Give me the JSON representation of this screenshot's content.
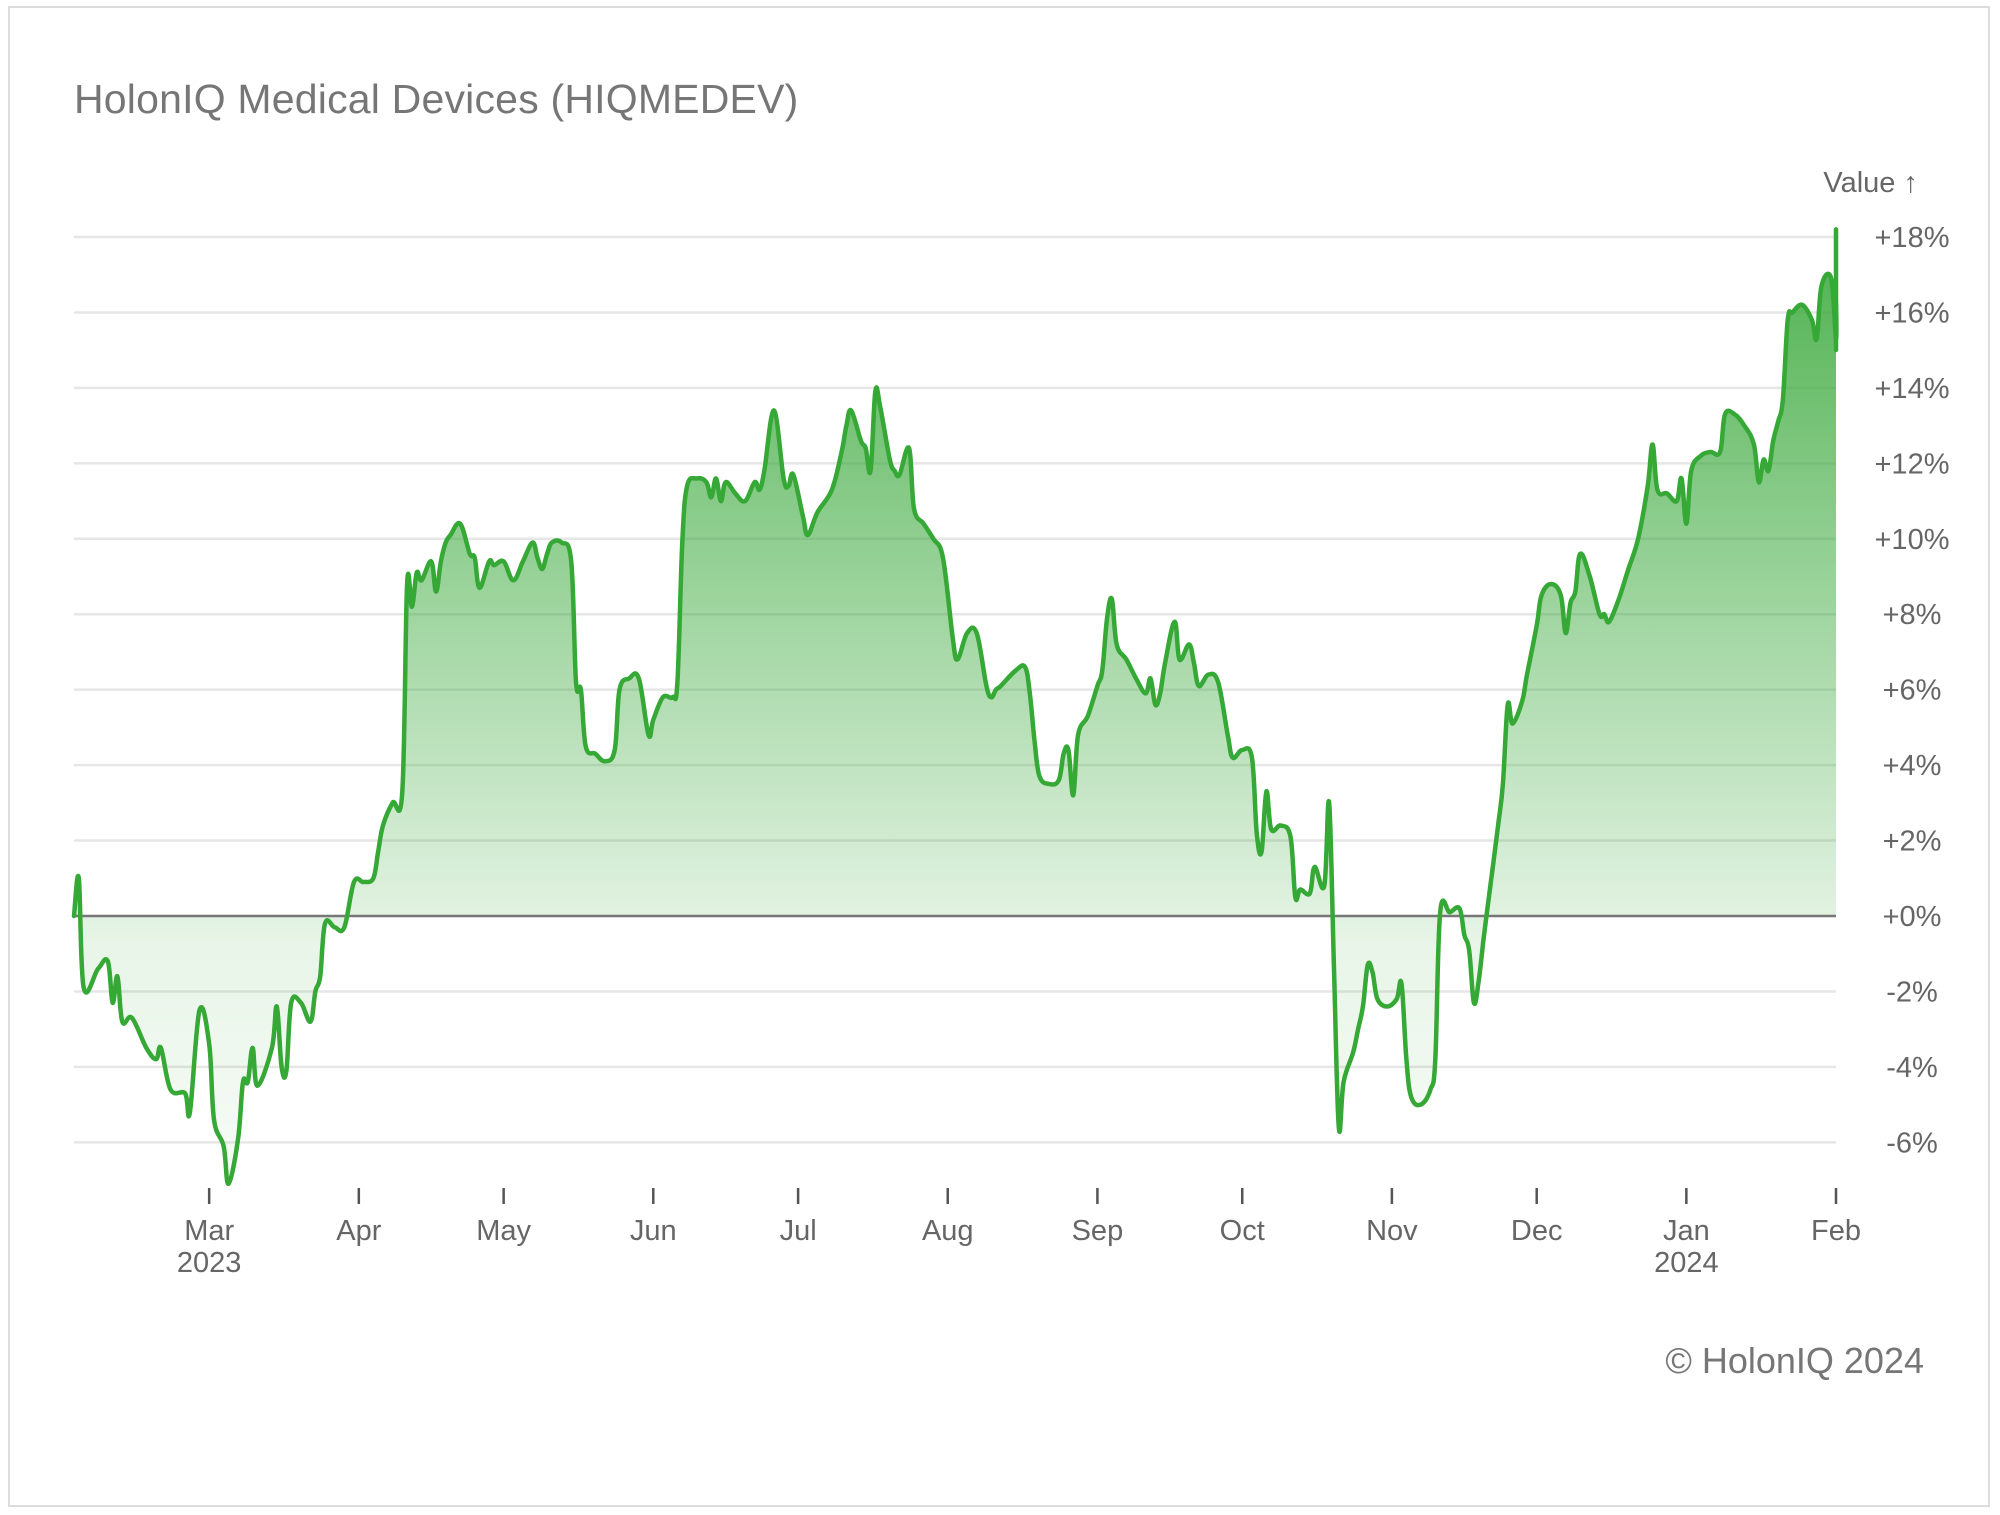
{
  "title": "HolonIQ Medical Devices (HIQMEDEV)",
  "copyright": "© HolonIQ 2024",
  "colors": {
    "line": "#35a836",
    "fill_top": "#3daa3e",
    "zero_line": "#777777",
    "grid": "#e6e6e6",
    "text": "#666666"
  },
  "chart_data": {
    "type": "area",
    "ylabel": "Value ↑",
    "y_unit": "%",
    "ylim": [
      -7.2,
      18.6
    ],
    "y_ticks": [
      {
        "value": 18,
        "label": "+18%"
      },
      {
        "value": 16,
        "label": "+16%"
      },
      {
        "value": 14,
        "label": "+14%"
      },
      {
        "value": 12,
        "label": "+12%"
      },
      {
        "value": 10,
        "label": "+10%"
      },
      {
        "value": 8,
        "label": "+8%"
      },
      {
        "value": 6,
        "label": "+6%"
      },
      {
        "value": 4,
        "label": "+4%"
      },
      {
        "value": 2,
        "label": "+2%"
      },
      {
        "value": 0,
        "label": "+0%"
      },
      {
        "value": -2,
        "label": "-2%"
      },
      {
        "value": -4,
        "label": "-4%"
      },
      {
        "value": -6,
        "label": "-6%"
      }
    ],
    "x_domain": [
      "2023-02-01",
      "2024-02-01"
    ],
    "x_ticks": [
      {
        "date": "2023-03-01",
        "label": "Mar",
        "sublabel": "2023"
      },
      {
        "date": "2023-04-01",
        "label": "Apr",
        "sublabel": ""
      },
      {
        "date": "2023-05-01",
        "label": "May",
        "sublabel": ""
      },
      {
        "date": "2023-06-01",
        "label": "Jun",
        "sublabel": ""
      },
      {
        "date": "2023-07-01",
        "label": "Jul",
        "sublabel": ""
      },
      {
        "date": "2023-08-01",
        "label": "Aug",
        "sublabel": ""
      },
      {
        "date": "2023-09-01",
        "label": "Sep",
        "sublabel": ""
      },
      {
        "date": "2023-10-01",
        "label": "Oct",
        "sublabel": ""
      },
      {
        "date": "2023-11-01",
        "label": "Nov",
        "sublabel": ""
      },
      {
        "date": "2023-12-01",
        "label": "Dec",
        "sublabel": ""
      },
      {
        "date": "2024-01-01",
        "label": "Jan",
        "sublabel": "2024"
      },
      {
        "date": "2024-02-01",
        "label": "Feb",
        "sublabel": ""
      }
    ],
    "grid": true,
    "series": [
      {
        "points": [
          [
            "2023-02-01",
            0.0
          ],
          [
            "2023-02-02",
            1.0
          ],
          [
            "2023-02-03",
            -1.9
          ],
          [
            "2023-02-06",
            -1.4
          ],
          [
            "2023-02-08",
            -1.2
          ],
          [
            "2023-02-09",
            -2.3
          ],
          [
            "2023-02-10",
            -1.6
          ],
          [
            "2023-02-11",
            -2.8
          ],
          [
            "2023-02-13",
            -2.7
          ],
          [
            "2023-02-16",
            -3.5
          ],
          [
            "2023-02-18",
            -3.8
          ],
          [
            "2023-02-19",
            -3.5
          ],
          [
            "2023-02-21",
            -4.6
          ],
          [
            "2023-02-24",
            -4.7
          ],
          [
            "2023-02-25",
            -5.2
          ],
          [
            "2023-02-27",
            -2.5
          ],
          [
            "2023-03-01",
            -3.4
          ],
          [
            "2023-03-02",
            -5.4
          ],
          [
            "2023-03-04",
            -6.1
          ],
          [
            "2023-03-05",
            -7.1
          ],
          [
            "2023-03-07",
            -5.9
          ],
          [
            "2023-03-08",
            -4.4
          ],
          [
            "2023-03-09",
            -4.4
          ],
          [
            "2023-03-10",
            -3.5
          ],
          [
            "2023-03-11",
            -4.5
          ],
          [
            "2023-03-14",
            -3.5
          ],
          [
            "2023-03-15",
            -2.4
          ],
          [
            "2023-03-16",
            -4.0
          ],
          [
            "2023-03-17",
            -4.1
          ],
          [
            "2023-03-18",
            -2.3
          ],
          [
            "2023-03-20",
            -2.3
          ],
          [
            "2023-03-22",
            -2.8
          ],
          [
            "2023-03-23",
            -2.0
          ],
          [
            "2023-03-24",
            -1.6
          ],
          [
            "2023-03-25",
            -0.2
          ],
          [
            "2023-03-27",
            -0.3
          ],
          [
            "2023-03-29",
            -0.3
          ],
          [
            "2023-03-31",
            0.9
          ],
          [
            "2023-04-02",
            0.9
          ],
          [
            "2023-04-04",
            1.0
          ],
          [
            "2023-04-05",
            1.7
          ],
          [
            "2023-04-06",
            2.4
          ],
          [
            "2023-04-08",
            3.0
          ],
          [
            "2023-04-10",
            3.3
          ],
          [
            "2023-04-11",
            8.8
          ],
          [
            "2023-04-12",
            8.2
          ],
          [
            "2023-04-13",
            9.1
          ],
          [
            "2023-04-14",
            8.9
          ],
          [
            "2023-04-16",
            9.4
          ],
          [
            "2023-04-17",
            8.6
          ],
          [
            "2023-04-18",
            9.4
          ],
          [
            "2023-04-19",
            9.9
          ],
          [
            "2023-04-20",
            10.1
          ],
          [
            "2023-04-22",
            10.4
          ],
          [
            "2023-04-24",
            9.6
          ],
          [
            "2023-04-25",
            9.5
          ],
          [
            "2023-04-26",
            8.7
          ],
          [
            "2023-04-28",
            9.4
          ],
          [
            "2023-04-29",
            9.3
          ],
          [
            "2023-05-01",
            9.4
          ],
          [
            "2023-05-03",
            8.9
          ],
          [
            "2023-05-05",
            9.4
          ],
          [
            "2023-05-07",
            9.9
          ],
          [
            "2023-05-08",
            9.5
          ],
          [
            "2023-05-09",
            9.2
          ],
          [
            "2023-05-10",
            9.6
          ],
          [
            "2023-05-11",
            9.9
          ],
          [
            "2023-05-13",
            9.9
          ],
          [
            "2023-05-15",
            9.4
          ],
          [
            "2023-05-16",
            6.2
          ],
          [
            "2023-05-17",
            6.0
          ],
          [
            "2023-05-18",
            4.5
          ],
          [
            "2023-05-20",
            4.3
          ],
          [
            "2023-05-22",
            4.1
          ],
          [
            "2023-05-24",
            4.4
          ],
          [
            "2023-05-25",
            6.0
          ],
          [
            "2023-05-27",
            6.3
          ],
          [
            "2023-05-29",
            6.3
          ],
          [
            "2023-05-31",
            4.8
          ],
          [
            "2023-06-01",
            5.2
          ],
          [
            "2023-06-03",
            5.8
          ],
          [
            "2023-06-05",
            5.8
          ],
          [
            "2023-06-06",
            6.2
          ],
          [
            "2023-06-07",
            9.9
          ],
          [
            "2023-06-08",
            11.4
          ],
          [
            "2023-06-10",
            11.6
          ],
          [
            "2023-06-12",
            11.5
          ],
          [
            "2023-06-13",
            11.1
          ],
          [
            "2023-06-14",
            11.6
          ],
          [
            "2023-06-15",
            11.0
          ],
          [
            "2023-06-16",
            11.5
          ],
          [
            "2023-06-18",
            11.2
          ],
          [
            "2023-06-20",
            11.0
          ],
          [
            "2023-06-22",
            11.5
          ],
          [
            "2023-06-23",
            11.3
          ],
          [
            "2023-06-24",
            11.8
          ],
          [
            "2023-06-26",
            13.4
          ],
          [
            "2023-06-28",
            11.6
          ],
          [
            "2023-06-29",
            11.4
          ],
          [
            "2023-06-30",
            11.7
          ],
          [
            "2023-07-02",
            10.6
          ],
          [
            "2023-07-03",
            10.1
          ],
          [
            "2023-07-05",
            10.7
          ],
          [
            "2023-07-08",
            11.3
          ],
          [
            "2023-07-10",
            12.3
          ],
          [
            "2023-07-11",
            13.0
          ],
          [
            "2023-07-12",
            13.4
          ],
          [
            "2023-07-14",
            12.6
          ],
          [
            "2023-07-15",
            12.4
          ],
          [
            "2023-07-16",
            11.8
          ],
          [
            "2023-07-17",
            13.9
          ],
          [
            "2023-07-18",
            13.5
          ],
          [
            "2023-07-20",
            12.1
          ],
          [
            "2023-07-21",
            11.8
          ],
          [
            "2023-07-22",
            11.7
          ],
          [
            "2023-07-24",
            12.4
          ],
          [
            "2023-07-25",
            10.8
          ],
          [
            "2023-07-27",
            10.4
          ],
          [
            "2023-07-29",
            10.0
          ],
          [
            "2023-07-31",
            9.5
          ],
          [
            "2023-08-02",
            7.4
          ],
          [
            "2023-08-03",
            6.8
          ],
          [
            "2023-08-05",
            7.5
          ],
          [
            "2023-08-07",
            7.5
          ],
          [
            "2023-08-09",
            6.1
          ],
          [
            "2023-08-10",
            5.8
          ],
          [
            "2023-08-11",
            6.0
          ],
          [
            "2023-08-12",
            6.1
          ],
          [
            "2023-08-15",
            6.5
          ],
          [
            "2023-08-17",
            6.6
          ],
          [
            "2023-08-18",
            5.9
          ],
          [
            "2023-08-19",
            4.6
          ],
          [
            "2023-08-20",
            3.7
          ],
          [
            "2023-08-22",
            3.5
          ],
          [
            "2023-08-24",
            3.6
          ],
          [
            "2023-08-25",
            4.3
          ],
          [
            "2023-08-26",
            4.4
          ],
          [
            "2023-08-27",
            3.2
          ],
          [
            "2023-08-28",
            4.8
          ],
          [
            "2023-08-30",
            5.3
          ],
          [
            "2023-09-01",
            6.1
          ],
          [
            "2023-09-02",
            6.5
          ],
          [
            "2023-09-03",
            7.9
          ],
          [
            "2023-09-04",
            8.4
          ],
          [
            "2023-09-05",
            7.2
          ],
          [
            "2023-09-07",
            6.8
          ],
          [
            "2023-09-09",
            6.3
          ],
          [
            "2023-09-11",
            5.9
          ],
          [
            "2023-09-12",
            6.3
          ],
          [
            "2023-09-13",
            5.6
          ],
          [
            "2023-09-14",
            5.9
          ],
          [
            "2023-09-15",
            6.7
          ],
          [
            "2023-09-17",
            7.8
          ],
          [
            "2023-09-18",
            6.8
          ],
          [
            "2023-09-20",
            7.2
          ],
          [
            "2023-09-21",
            6.7
          ],
          [
            "2023-09-22",
            6.1
          ],
          [
            "2023-09-24",
            6.4
          ],
          [
            "2023-09-26",
            6.2
          ],
          [
            "2023-09-28",
            4.8
          ],
          [
            "2023-09-29",
            4.2
          ],
          [
            "2023-10-01",
            4.4
          ],
          [
            "2023-10-03",
            4.2
          ],
          [
            "2023-10-04",
            2.2
          ],
          [
            "2023-10-05",
            1.7
          ],
          [
            "2023-10-06",
            3.3
          ],
          [
            "2023-10-07",
            2.3
          ],
          [
            "2023-10-09",
            2.4
          ],
          [
            "2023-10-11",
            2.1
          ],
          [
            "2023-10-12",
            0.5
          ],
          [
            "2023-10-13",
            0.7
          ],
          [
            "2023-10-15",
            0.6
          ],
          [
            "2023-10-16",
            1.3
          ],
          [
            "2023-10-18",
            0.8
          ],
          [
            "2023-10-19",
            3.0
          ],
          [
            "2023-10-20",
            -1.4
          ],
          [
            "2023-10-21",
            -5.6
          ],
          [
            "2023-10-22",
            -4.4
          ],
          [
            "2023-10-24",
            -3.6
          ],
          [
            "2023-10-25",
            -3.0
          ],
          [
            "2023-10-26",
            -2.4
          ],
          [
            "2023-10-27",
            -1.3
          ],
          [
            "2023-10-28",
            -1.5
          ],
          [
            "2023-10-29",
            -2.2
          ],
          [
            "2023-10-31",
            -2.4
          ],
          [
            "2023-11-02",
            -2.2
          ],
          [
            "2023-11-03",
            -1.8
          ],
          [
            "2023-11-04",
            -3.8
          ],
          [
            "2023-11-05",
            -4.8
          ],
          [
            "2023-11-07",
            -5.0
          ],
          [
            "2023-11-09",
            -4.6
          ],
          [
            "2023-11-10",
            -3.8
          ],
          [
            "2023-11-11",
            0.1
          ],
          [
            "2023-11-13",
            0.1
          ],
          [
            "2023-11-15",
            0.2
          ],
          [
            "2023-11-16",
            -0.5
          ],
          [
            "2023-11-17",
            -0.9
          ],
          [
            "2023-11-18",
            -2.3
          ],
          [
            "2023-11-19",
            -1.7
          ],
          [
            "2023-11-20",
            -0.6
          ],
          [
            "2023-11-21",
            0.4
          ],
          [
            "2023-11-22",
            1.4
          ],
          [
            "2023-11-23",
            2.4
          ],
          [
            "2023-11-24",
            3.5
          ],
          [
            "2023-11-25",
            5.6
          ],
          [
            "2023-11-26",
            5.1
          ],
          [
            "2023-11-28",
            5.7
          ],
          [
            "2023-11-29",
            6.4
          ],
          [
            "2023-12-01",
            7.7
          ],
          [
            "2023-12-02",
            8.5
          ],
          [
            "2023-12-04",
            8.8
          ],
          [
            "2023-12-06",
            8.5
          ],
          [
            "2023-12-07",
            7.5
          ],
          [
            "2023-12-08",
            8.3
          ],
          [
            "2023-12-09",
            8.6
          ],
          [
            "2023-12-10",
            9.6
          ],
          [
            "2023-12-12",
            9.0
          ],
          [
            "2023-12-14",
            8.0
          ],
          [
            "2023-12-15",
            8.0
          ],
          [
            "2023-12-16",
            7.8
          ],
          [
            "2023-12-18",
            8.4
          ],
          [
            "2023-12-20",
            9.2
          ],
          [
            "2023-12-22",
            10.0
          ],
          [
            "2023-12-24",
            11.4
          ],
          [
            "2023-12-25",
            12.5
          ],
          [
            "2023-12-26",
            11.3
          ],
          [
            "2023-12-28",
            11.2
          ],
          [
            "2023-12-30",
            11.0
          ],
          [
            "2023-12-31",
            11.6
          ],
          [
            "2024-01-01",
            10.4
          ],
          [
            "2024-01-02",
            11.8
          ],
          [
            "2024-01-04",
            12.2
          ],
          [
            "2024-01-06",
            12.3
          ],
          [
            "2024-01-08",
            12.3
          ],
          [
            "2024-01-09",
            13.3
          ],
          [
            "2024-01-11",
            13.3
          ],
          [
            "2024-01-13",
            13.0
          ],
          [
            "2024-01-15",
            12.5
          ],
          [
            "2024-01-16",
            11.5
          ],
          [
            "2024-01-17",
            12.1
          ],
          [
            "2024-01-18",
            11.8
          ],
          [
            "2024-01-19",
            12.6
          ],
          [
            "2024-01-20",
            13.1
          ],
          [
            "2024-01-21",
            13.7
          ],
          [
            "2024-01-22",
            15.8
          ],
          [
            "2024-01-23",
            16.0
          ],
          [
            "2024-01-25",
            16.2
          ],
          [
            "2024-01-27",
            15.8
          ],
          [
            "2024-01-28",
            15.3
          ],
          [
            "2024-01-29",
            16.7
          ],
          [
            "2024-01-31",
            16.9
          ],
          [
            "2024-02-01",
            15.3
          ],
          [
            "2024-02-02",
            16.4
          ],
          [
            "2024-02-03",
            15.5
          ],
          [
            "2024-02-05",
            15.6
          ],
          [
            "2024-02-06",
            15.1
          ],
          [
            "2024-02-07",
            17.6
          ],
          [
            "2024-02-08",
            18.2
          ],
          [
            "2024-02-09",
            17.8
          ]
        ]
      }
    ]
  }
}
